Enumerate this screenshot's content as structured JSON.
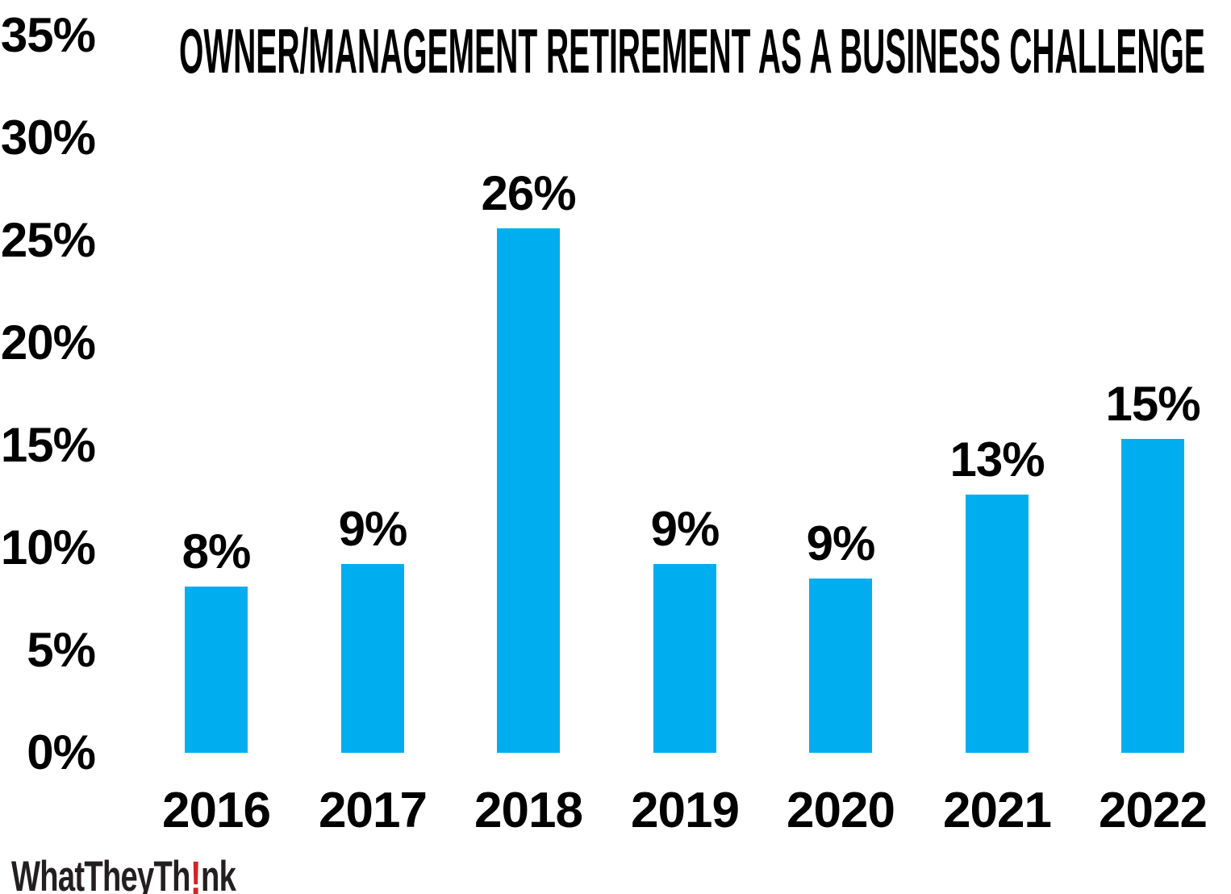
{
  "title": "OWNER/MANAGEMENT RETIREMENT AS A BUSINESS CHALLENGE",
  "logo": {
    "prefix": "WhatTheyTh",
    "bang": "!",
    "suffix": "nk",
    "text_color": "#231f20",
    "bang_color": "#d2232a"
  },
  "colors": {
    "bar": "#00aeef",
    "text": "#000000",
    "background": "#ffffff"
  },
  "chart_data": {
    "type": "bar",
    "title": "OWNER/MANAGEMENT RETIREMENT AS A BUSINESS CHALLENGE",
    "categories": [
      "2016",
      "2017",
      "2018",
      "2019",
      "2020",
      "2021",
      "2022"
    ],
    "values": [
      8,
      9,
      26,
      9,
      9,
      13,
      15
    ],
    "data_labels": [
      "8%",
      "9%",
      "26%",
      "9%",
      "9%",
      "13%",
      "15%"
    ],
    "display_height_pct": [
      8.1,
      9.2,
      25.6,
      9.2,
      8.5,
      12.6,
      15.3
    ],
    "xlabel": "",
    "ylabel": "",
    "ylim": [
      0,
      35
    ],
    "y_tick_step": 5,
    "y_ticks": [
      {
        "value": 35,
        "label": "35%"
      },
      {
        "value": 30,
        "label": "30%"
      },
      {
        "value": 25,
        "label": "25%"
      },
      {
        "value": 20,
        "label": "20%"
      },
      {
        "value": 15,
        "label": "15%"
      },
      {
        "value": 10,
        "label": "10%"
      },
      {
        "value": 5,
        "label": "5%"
      },
      {
        "value": 0,
        "label": "0%"
      }
    ],
    "bar_color": "#00aeef",
    "grid": false,
    "legend": false,
    "axis_lines": false
  }
}
